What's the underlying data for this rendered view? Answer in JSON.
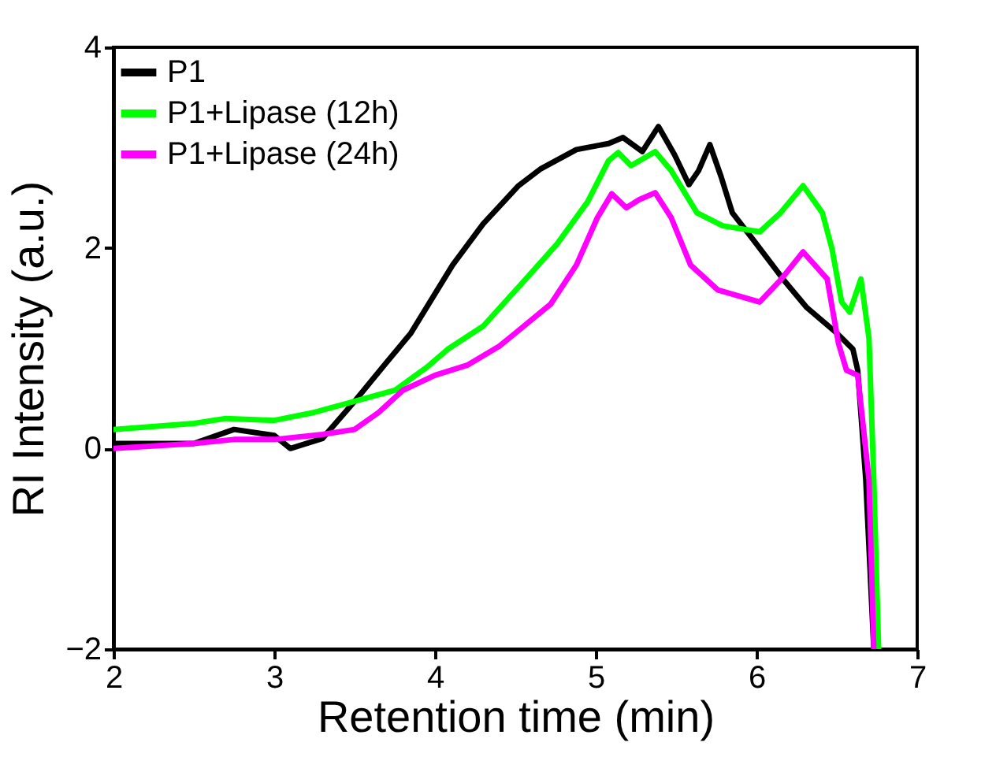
{
  "chart_data": {
    "type": "line",
    "xlabel": "Retention time (min)",
    "ylabel": "RI Intensity (a.u.)",
    "xlim": [
      2,
      7
    ],
    "xticks": [
      2,
      3,
      4,
      5,
      6,
      7
    ],
    "ylim": [
      -2,
      4
    ],
    "yticks": [
      -2,
      0,
      2,
      4
    ],
    "grid": false,
    "legend": "top left",
    "line_style": "solid",
    "marker": "none",
    "series": [
      {
        "name": "P1",
        "color": "#000000",
        "x": [
          2.0,
          2.5,
          2.75,
          3.0,
          3.1,
          3.3,
          3.5,
          3.7,
          3.85,
          4.11,
          4.3,
          4.52,
          4.66,
          4.88,
          5.08,
          5.17,
          5.29,
          5.39,
          5.49,
          5.58,
          5.64,
          5.71,
          5.78,
          5.85,
          5.98,
          6.17,
          6.31,
          6.5,
          6.6,
          6.63,
          6.68,
          6.73
        ],
        "values": [
          0.05,
          0.05,
          0.19,
          0.13,
          0.0,
          0.1,
          0.47,
          0.86,
          1.15,
          1.83,
          2.24,
          2.62,
          2.79,
          2.98,
          3.04,
          3.1,
          2.96,
          3.21,
          2.93,
          2.63,
          2.77,
          3.03,
          2.71,
          2.35,
          2.08,
          1.68,
          1.41,
          1.15,
          0.99,
          0.78,
          -0.31,
          -2.0
        ]
      },
      {
        "name": "P1+Lipase (12h)",
        "color": "#00ff00",
        "x": [
          2.0,
          2.5,
          2.7,
          3.0,
          3.25,
          3.5,
          3.75,
          3.95,
          4.08,
          4.3,
          4.56,
          4.76,
          4.95,
          5.08,
          5.14,
          5.22,
          5.37,
          5.47,
          5.63,
          5.79,
          6.02,
          6.15,
          6.29,
          6.41,
          6.47,
          6.53,
          6.58,
          6.65,
          6.7,
          6.73,
          6.76
        ],
        "values": [
          0.19,
          0.25,
          0.3,
          0.28,
          0.36,
          0.47,
          0.58,
          0.81,
          0.99,
          1.22,
          1.68,
          2.04,
          2.46,
          2.87,
          2.95,
          2.82,
          2.96,
          2.77,
          2.35,
          2.22,
          2.16,
          2.35,
          2.62,
          2.35,
          1.99,
          1.46,
          1.36,
          1.69,
          1.1,
          -0.31,
          -2.0
        ]
      },
      {
        "name": "P1+Lipase (24h)",
        "color": "#ff00ff",
        "x": [
          2.0,
          2.5,
          2.75,
          3.0,
          3.3,
          3.5,
          3.65,
          3.8,
          4.0,
          4.2,
          4.4,
          4.5,
          4.72,
          4.88,
          5.01,
          5.1,
          5.19,
          5.27,
          5.37,
          5.47,
          5.59,
          5.76,
          6.02,
          6.15,
          6.29,
          6.44,
          6.51,
          6.56,
          6.63,
          6.7,
          6.73
        ],
        "values": [
          0.0,
          0.05,
          0.09,
          0.09,
          0.14,
          0.19,
          0.36,
          0.58,
          0.73,
          0.83,
          1.02,
          1.15,
          1.44,
          1.83,
          2.3,
          2.54,
          2.4,
          2.48,
          2.55,
          2.3,
          1.83,
          1.58,
          1.46,
          1.68,
          1.96,
          1.69,
          1.05,
          0.78,
          0.73,
          -0.31,
          -2.0
        ]
      }
    ]
  }
}
